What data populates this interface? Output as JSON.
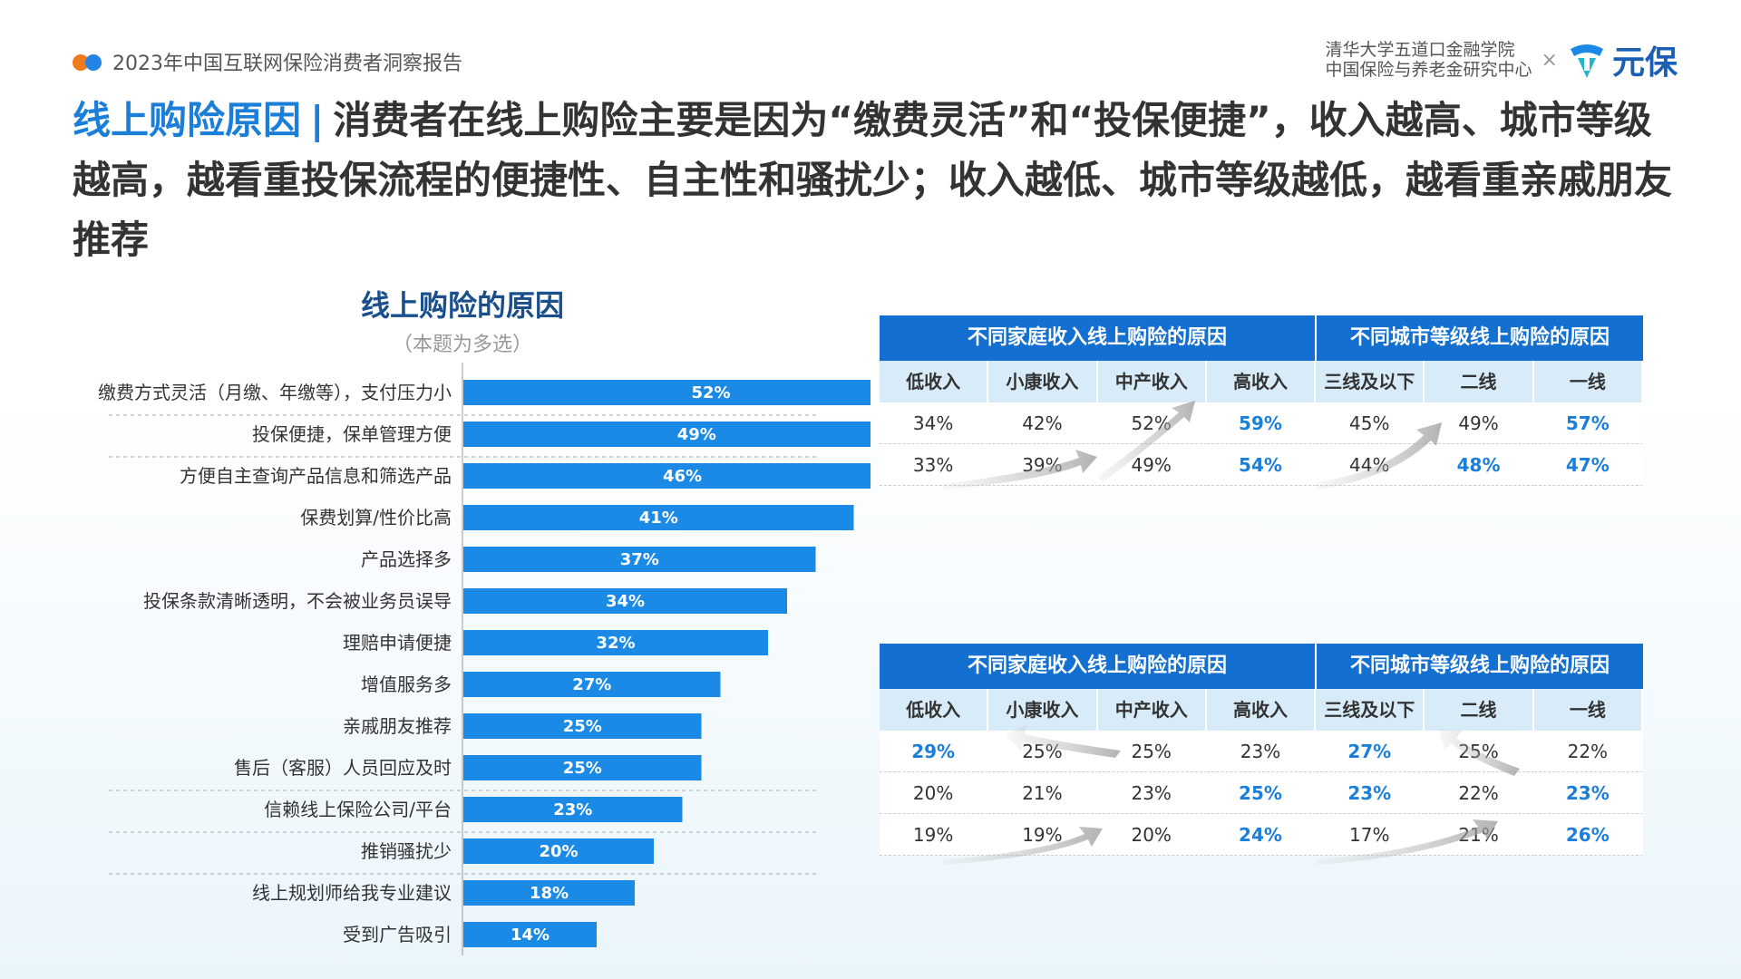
{
  "header": {
    "report_title": "2023年中国互联网保险消费者洞察报告",
    "university_line1": "清华大学五道口金融学院",
    "university_line2": "中国保险与养老金研究中心",
    "times": "×",
    "brand_name": "元保"
  },
  "headline": {
    "accent": "线上购险原因",
    "bar": "|",
    "text": "消费者在线上购险主要是因为“缴费灵活”和“投保便捷”，收入越高、城市等级越高，越看重投保流程的便捷性、自主性和骚扰少；收入越低、城市等级越低，越看重亲戚朋友推荐"
  },
  "colors": {
    "bar": "#1a8ae6",
    "header": "#1370d0",
    "subheader": "#d7ebf9",
    "accent": "#1b7fd9"
  },
  "chart_data": {
    "type": "bar",
    "orientation": "horizontal",
    "title": "线上购险的原因",
    "subtitle": "（本题为多选）",
    "categories": [
      "缴费方式灵活（月缴、年缴等），支付压力小",
      "投保便捷，保单管理方便",
      "方便自主查询产品信息和筛选产品",
      "保费划算/性价比高",
      "产品选择多",
      "投保条款清晰透明，不会被业务员误导",
      "理赔申请便捷",
      "增值服务多",
      "亲戚朋友推荐",
      "售后（客服）人员回应及时",
      "信赖线上保险公司/平台",
      "推销骚扰少",
      "线上规划师给我专业建议",
      "受到广告吸引"
    ],
    "values": [
      52,
      49,
      46,
      41,
      37,
      34,
      32,
      27,
      25,
      25,
      23,
      20,
      18,
      14
    ],
    "value_labels": [
      "52%",
      "49%",
      "46%",
      "41%",
      "37%",
      "34%",
      "32%",
      "27%",
      "25%",
      "25%",
      "23%",
      "20%",
      "18%",
      "14%"
    ],
    "unit": "%"
  },
  "table1": {
    "header_income": "不同家庭收入线上购险的原因",
    "header_city": "不同城市等级线上购险的原因",
    "columns": [
      "低收入",
      "小康收入",
      "中产收入",
      "高收入",
      "三线及以下",
      "二线",
      "一线"
    ],
    "rows": [
      [
        "34%",
        "42%",
        "52%",
        "59%",
        "45%",
        "49%",
        "57%"
      ],
      [
        "33%",
        "39%",
        "49%",
        "54%",
        "44%",
        "48%",
        "47%"
      ]
    ],
    "highlight": [
      [
        false,
        false,
        false,
        true,
        false,
        false,
        true
      ],
      [
        false,
        false,
        false,
        true,
        false,
        true,
        true
      ]
    ]
  },
  "table2": {
    "header_income": "不同家庭收入线上购险的原因",
    "header_city": "不同城市等级线上购险的原因",
    "columns": [
      "低收入",
      "小康收入",
      "中产收入",
      "高收入",
      "三线及以下",
      "二线",
      "一线"
    ],
    "rows": [
      [
        "29%",
        "25%",
        "25%",
        "23%",
        "27%",
        "25%",
        "22%"
      ],
      [
        "20%",
        "21%",
        "23%",
        "25%",
        "23%",
        "22%",
        "23%"
      ],
      [
        "19%",
        "19%",
        "20%",
        "24%",
        "17%",
        "21%",
        "26%"
      ]
    ],
    "highlight": [
      [
        true,
        false,
        false,
        false,
        true,
        false,
        false
      ],
      [
        false,
        false,
        false,
        true,
        true,
        false,
        true
      ],
      [
        false,
        false,
        false,
        true,
        false,
        false,
        true
      ]
    ]
  }
}
